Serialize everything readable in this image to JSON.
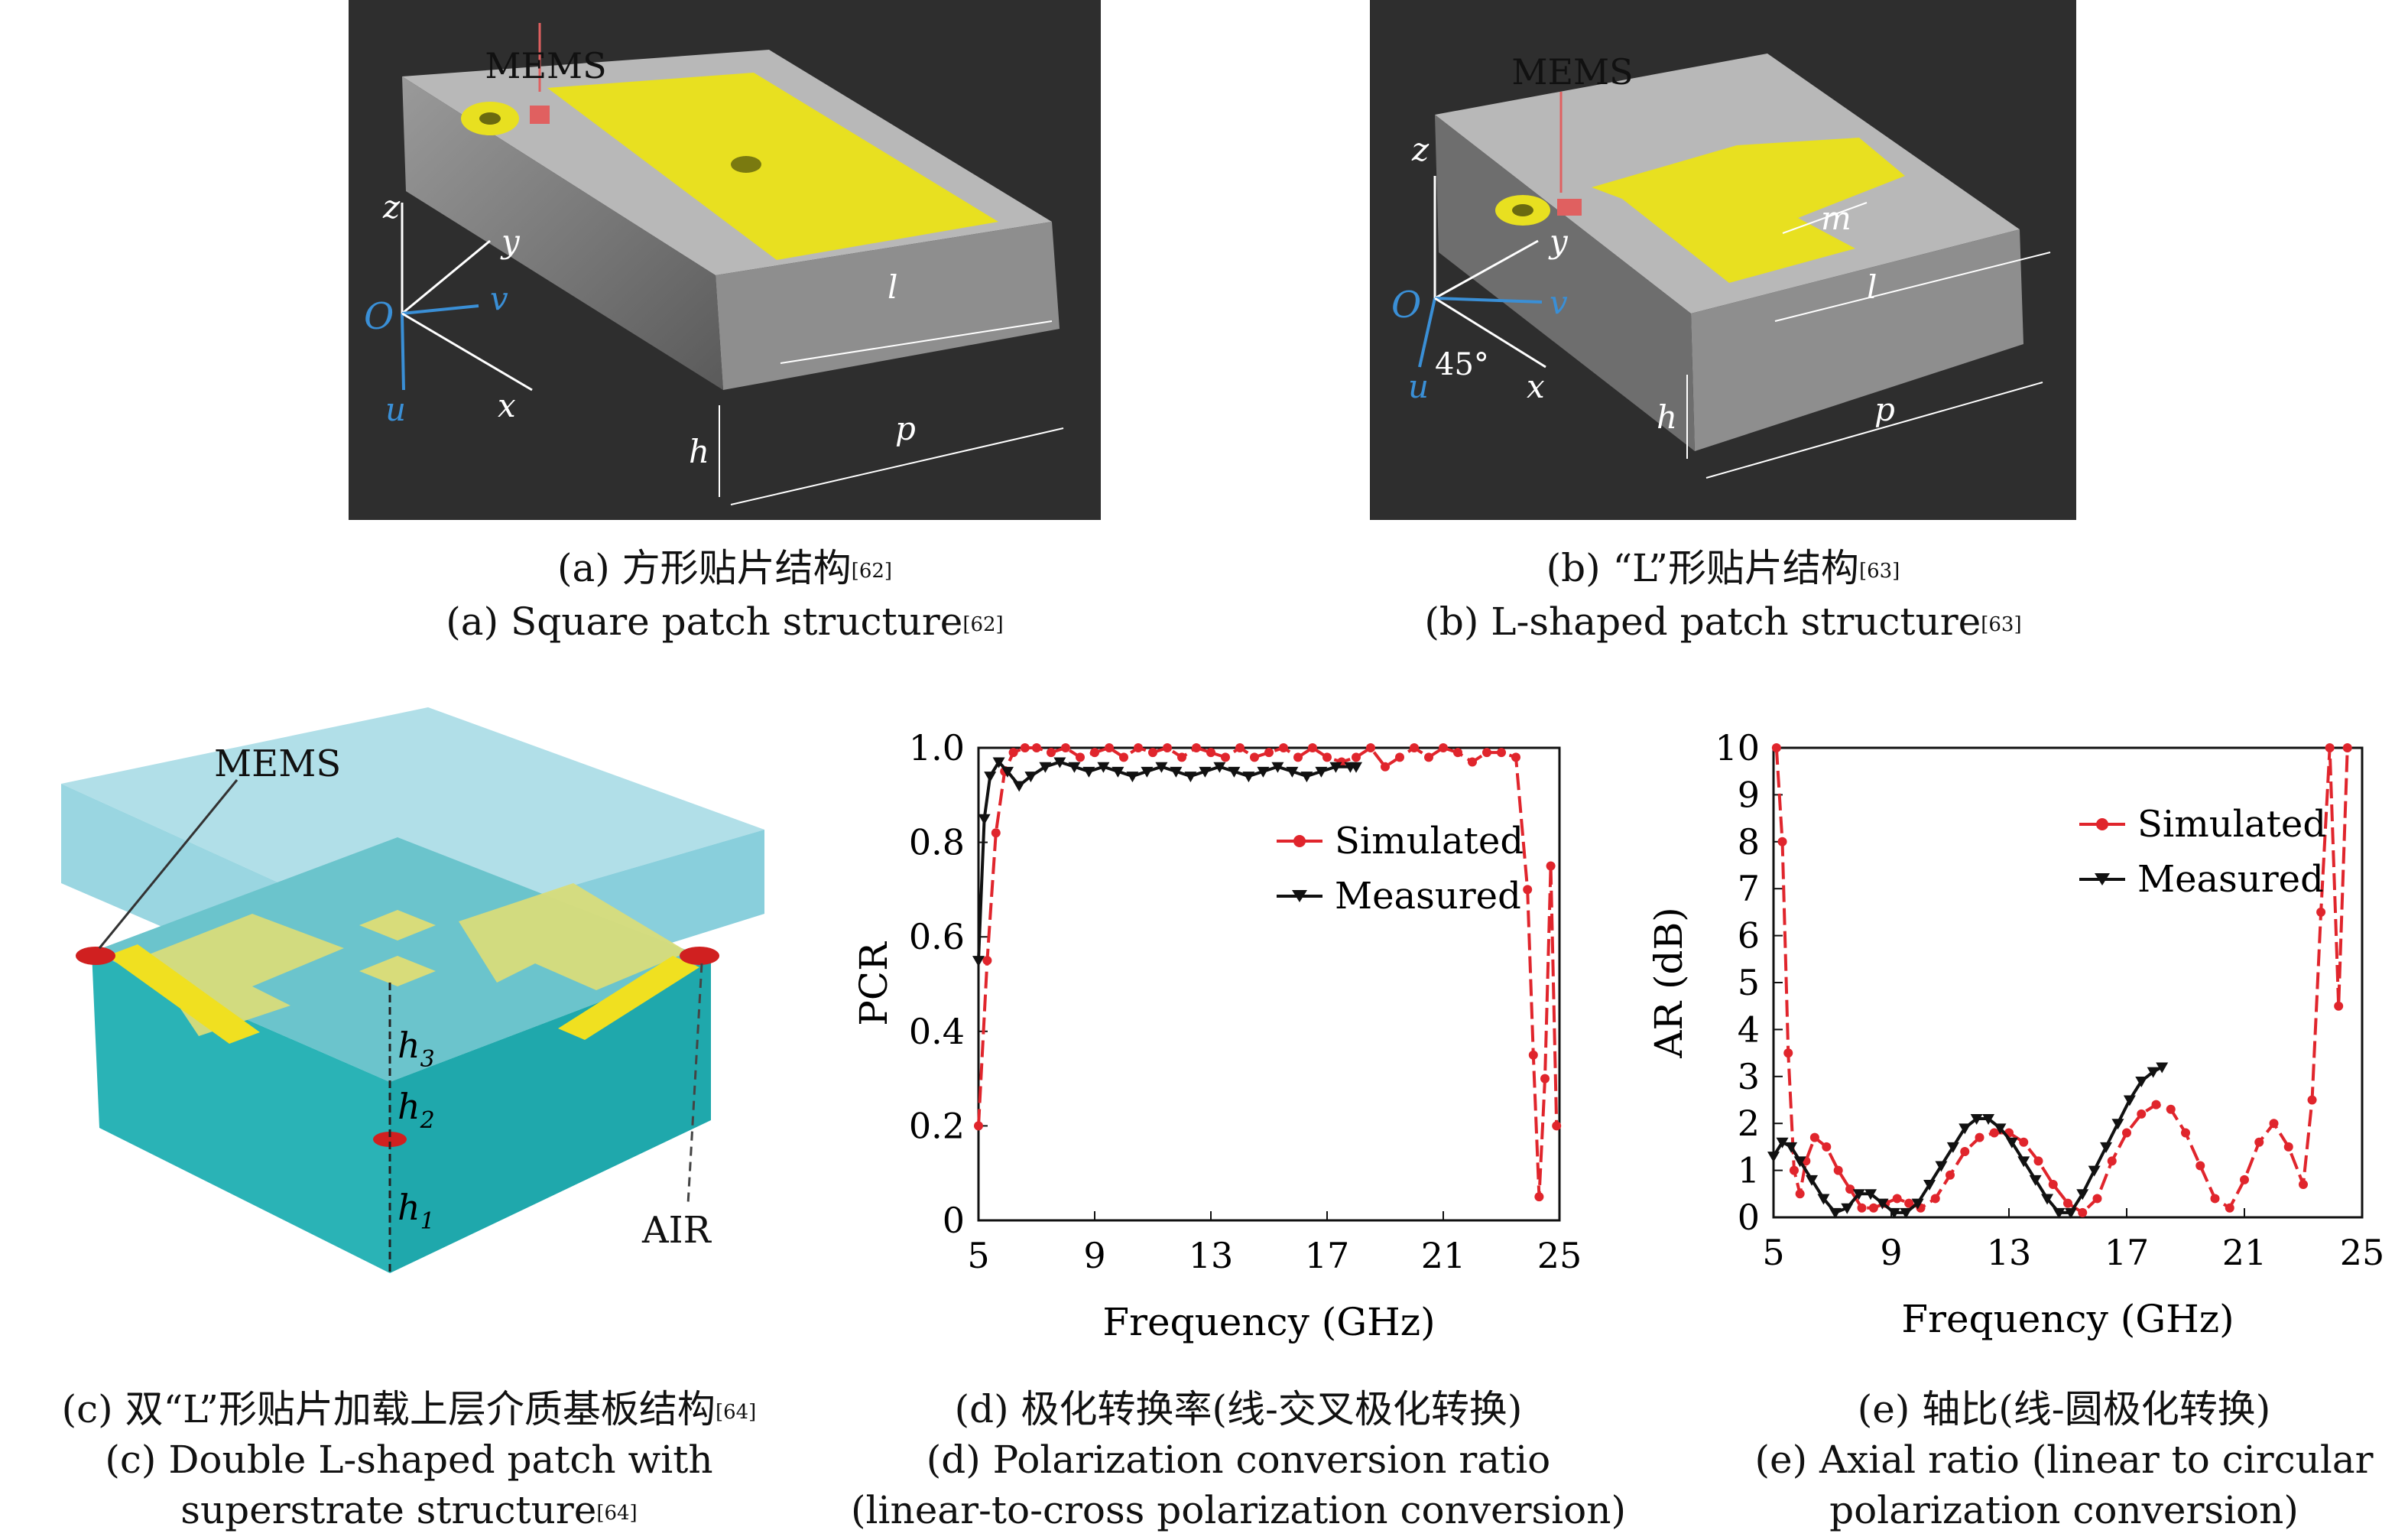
{
  "panels": {
    "a": {
      "labels": {
        "mems": "MEMS",
        "z": "z",
        "y": "y",
        "v": "v",
        "O": "O",
        "u": "u",
        "x": "x",
        "l": "l",
        "h": "h",
        "p": "p"
      },
      "caption_cn": "(a) 方形贴片结构",
      "caption_en": "(a) Square patch structure",
      "ref": "[62]"
    },
    "b": {
      "labels": {
        "mems": "MEMS",
        "z": "z",
        "y": "y",
        "v": "v",
        "O": "O",
        "u": "u",
        "x": "x",
        "m": "m",
        "l": "l",
        "h": "h",
        "p": "p",
        "angle": "45°"
      },
      "caption_cn_prefix": "(b) ",
      "caption_cn_quote": "“L”",
      "caption_cn_suffix": "形贴片结构",
      "caption_en": "(b) L-shaped patch structure",
      "ref": "[63]"
    },
    "c": {
      "labels": {
        "mems": "MEMS",
        "h3": "h",
        "h3_sub": "3",
        "h2": "h",
        "h2_sub": "2",
        "h1": "h",
        "h1_sub": "1",
        "air": "AIR"
      },
      "caption_cn_prefix": "(c) 双",
      "caption_cn_quote": "“L”",
      "caption_cn_suffix": "形贴片加载上层介质基板结构",
      "caption_en_line1": "(c) Double L-shaped patch with",
      "caption_en_line2": "superstrate structure",
      "ref": "[64]"
    },
    "d": {
      "caption_cn": "(d) 极化转换率(线-交叉极化转换)",
      "caption_en_line1": "(d) Polarization conversion ratio",
      "caption_en_line2": "(linear-to-cross polarization conversion)"
    },
    "e": {
      "caption_cn": "(e) 轴比(线-圆极化转换)",
      "caption_en_line1": "(e) Axial ratio (linear to circular",
      "caption_en_line2": "polarization conversion)"
    }
  },
  "colors": {
    "simulated": "#e0252c",
    "measured": "#111111",
    "patch": "#e8e020",
    "mems": "#e06060",
    "axis_blue": "#3a8fd6"
  },
  "chart_data": [
    {
      "id": "d",
      "type": "line",
      "xlabel": "Frequency (GHz)",
      "ylabel": "PCR",
      "xlim": [
        5,
        25
      ],
      "ylim": [
        0,
        1.0
      ],
      "xticks": [
        "5",
        "9",
        "13",
        "17",
        "21",
        "25"
      ],
      "yticks": [
        "0",
        "0.2",
        "0.4",
        "0.6",
        "0.8",
        "1.0"
      ],
      "legend_position": "top-right",
      "series": [
        {
          "name": "Simulated",
          "marker": "circle",
          "x": [
            5.0,
            5.3,
            5.6,
            5.9,
            6.2,
            6.6,
            7.0,
            7.5,
            8.0,
            8.5,
            9.0,
            9.5,
            10.0,
            10.5,
            11.0,
            11.5,
            12.0,
            12.5,
            13.0,
            13.5,
            14.0,
            14.5,
            15.0,
            15.5,
            16.0,
            16.5,
            17.0,
            17.5,
            18.0,
            18.5,
            19.0,
            19.5,
            20.0,
            20.5,
            21.0,
            21.5,
            22.0,
            22.5,
            23.0,
            23.5,
            23.9,
            24.1,
            24.3,
            24.5,
            24.7,
            24.9
          ],
          "y": [
            0.2,
            0.55,
            0.82,
            0.95,
            0.99,
            1.0,
            1.0,
            0.99,
            1.0,
            0.98,
            0.99,
            1.0,
            0.98,
            1.0,
            0.99,
            1.0,
            0.98,
            1.0,
            0.99,
            0.98,
            1.0,
            0.98,
            0.99,
            1.0,
            0.98,
            1.0,
            0.98,
            0.97,
            0.98,
            1.0,
            0.96,
            0.98,
            1.0,
            0.98,
            1.0,
            0.99,
            0.97,
            0.99,
            0.99,
            0.98,
            0.7,
            0.35,
            0.05,
            0.3,
            0.75,
            0.2
          ]
        },
        {
          "name": "Measured",
          "marker": "triangle-down",
          "x": [
            5.0,
            5.2,
            5.4,
            5.7,
            6.0,
            6.4,
            6.8,
            7.3,
            7.8,
            8.3,
            8.8,
            9.3,
            9.8,
            10.3,
            10.8,
            11.3,
            11.8,
            12.3,
            12.8,
            13.3,
            13.8,
            14.3,
            14.8,
            15.3,
            15.8,
            16.3,
            16.8,
            17.3,
            17.8,
            18.0
          ],
          "y": [
            0.55,
            0.85,
            0.94,
            0.97,
            0.95,
            0.92,
            0.94,
            0.96,
            0.97,
            0.96,
            0.95,
            0.96,
            0.95,
            0.94,
            0.95,
            0.96,
            0.95,
            0.94,
            0.95,
            0.96,
            0.95,
            0.94,
            0.95,
            0.96,
            0.95,
            0.94,
            0.95,
            0.96,
            0.96,
            0.96
          ]
        }
      ]
    },
    {
      "id": "e",
      "type": "line",
      "xlabel": "Frequency (GHz)",
      "ylabel": "AR (dB)",
      "xlim": [
        5,
        25
      ],
      "ylim": [
        0,
        10
      ],
      "xticks": [
        "5",
        "9",
        "13",
        "17",
        "21",
        "25"
      ],
      "yticks": [
        "0",
        "1",
        "2",
        "3",
        "4",
        "5",
        "6",
        "7",
        "8",
        "9",
        "10"
      ],
      "legend_position": "top-right",
      "series": [
        {
          "name": "Simulated",
          "marker": "circle",
          "x": [
            5.1,
            5.3,
            5.5,
            5.7,
            5.9,
            6.1,
            6.4,
            6.8,
            7.2,
            7.6,
            8.0,
            8.4,
            8.8,
            9.2,
            9.6,
            10.0,
            10.5,
            11.0,
            11.5,
            12.0,
            12.5,
            13.0,
            13.5,
            14.0,
            14.5,
            15.0,
            15.5,
            16.0,
            16.5,
            17.0,
            17.5,
            18.0,
            18.5,
            19.0,
            19.5,
            20.0,
            20.5,
            21.0,
            21.5,
            22.0,
            22.5,
            23.0,
            23.3,
            23.6,
            23.9,
            24.2,
            24.5
          ],
          "y": [
            10,
            8,
            3.5,
            1.0,
            0.5,
            1.2,
            1.7,
            1.5,
            1.0,
            0.6,
            0.2,
            0.2,
            0.3,
            0.4,
            0.3,
            0.2,
            0.4,
            0.9,
            1.4,
            1.7,
            1.8,
            1.8,
            1.6,
            1.2,
            0.7,
            0.3,
            0.1,
            0.4,
            1.2,
            1.8,
            2.2,
            2.4,
            2.3,
            1.8,
            1.1,
            0.4,
            0.2,
            0.8,
            1.6,
            2.0,
            1.5,
            0.7,
            2.5,
            6.5,
            10,
            4.5,
            10
          ]
        },
        {
          "name": "Measured",
          "marker": "triangle-down",
          "x": [
            5.0,
            5.3,
            5.6,
            5.9,
            6.3,
            6.7,
            7.1,
            7.5,
            7.9,
            8.3,
            8.7,
            9.1,
            9.5,
            9.9,
            10.3,
            10.7,
            11.1,
            11.5,
            11.9,
            12.3,
            12.7,
            13.1,
            13.5,
            13.9,
            14.3,
            14.7,
            15.1,
            15.5,
            15.9,
            16.3,
            16.7,
            17.1,
            17.5,
            17.9,
            18.2
          ],
          "y": [
            1.3,
            1.6,
            1.5,
            1.2,
            0.8,
            0.4,
            0.1,
            0.2,
            0.5,
            0.5,
            0.3,
            0.1,
            0.1,
            0.3,
            0.7,
            1.1,
            1.5,
            1.9,
            2.1,
            2.1,
            1.9,
            1.6,
            1.2,
            0.8,
            0.4,
            0.1,
            0.1,
            0.5,
            1.0,
            1.5,
            2.0,
            2.5,
            2.9,
            3.1,
            3.2
          ]
        }
      ]
    }
  ]
}
